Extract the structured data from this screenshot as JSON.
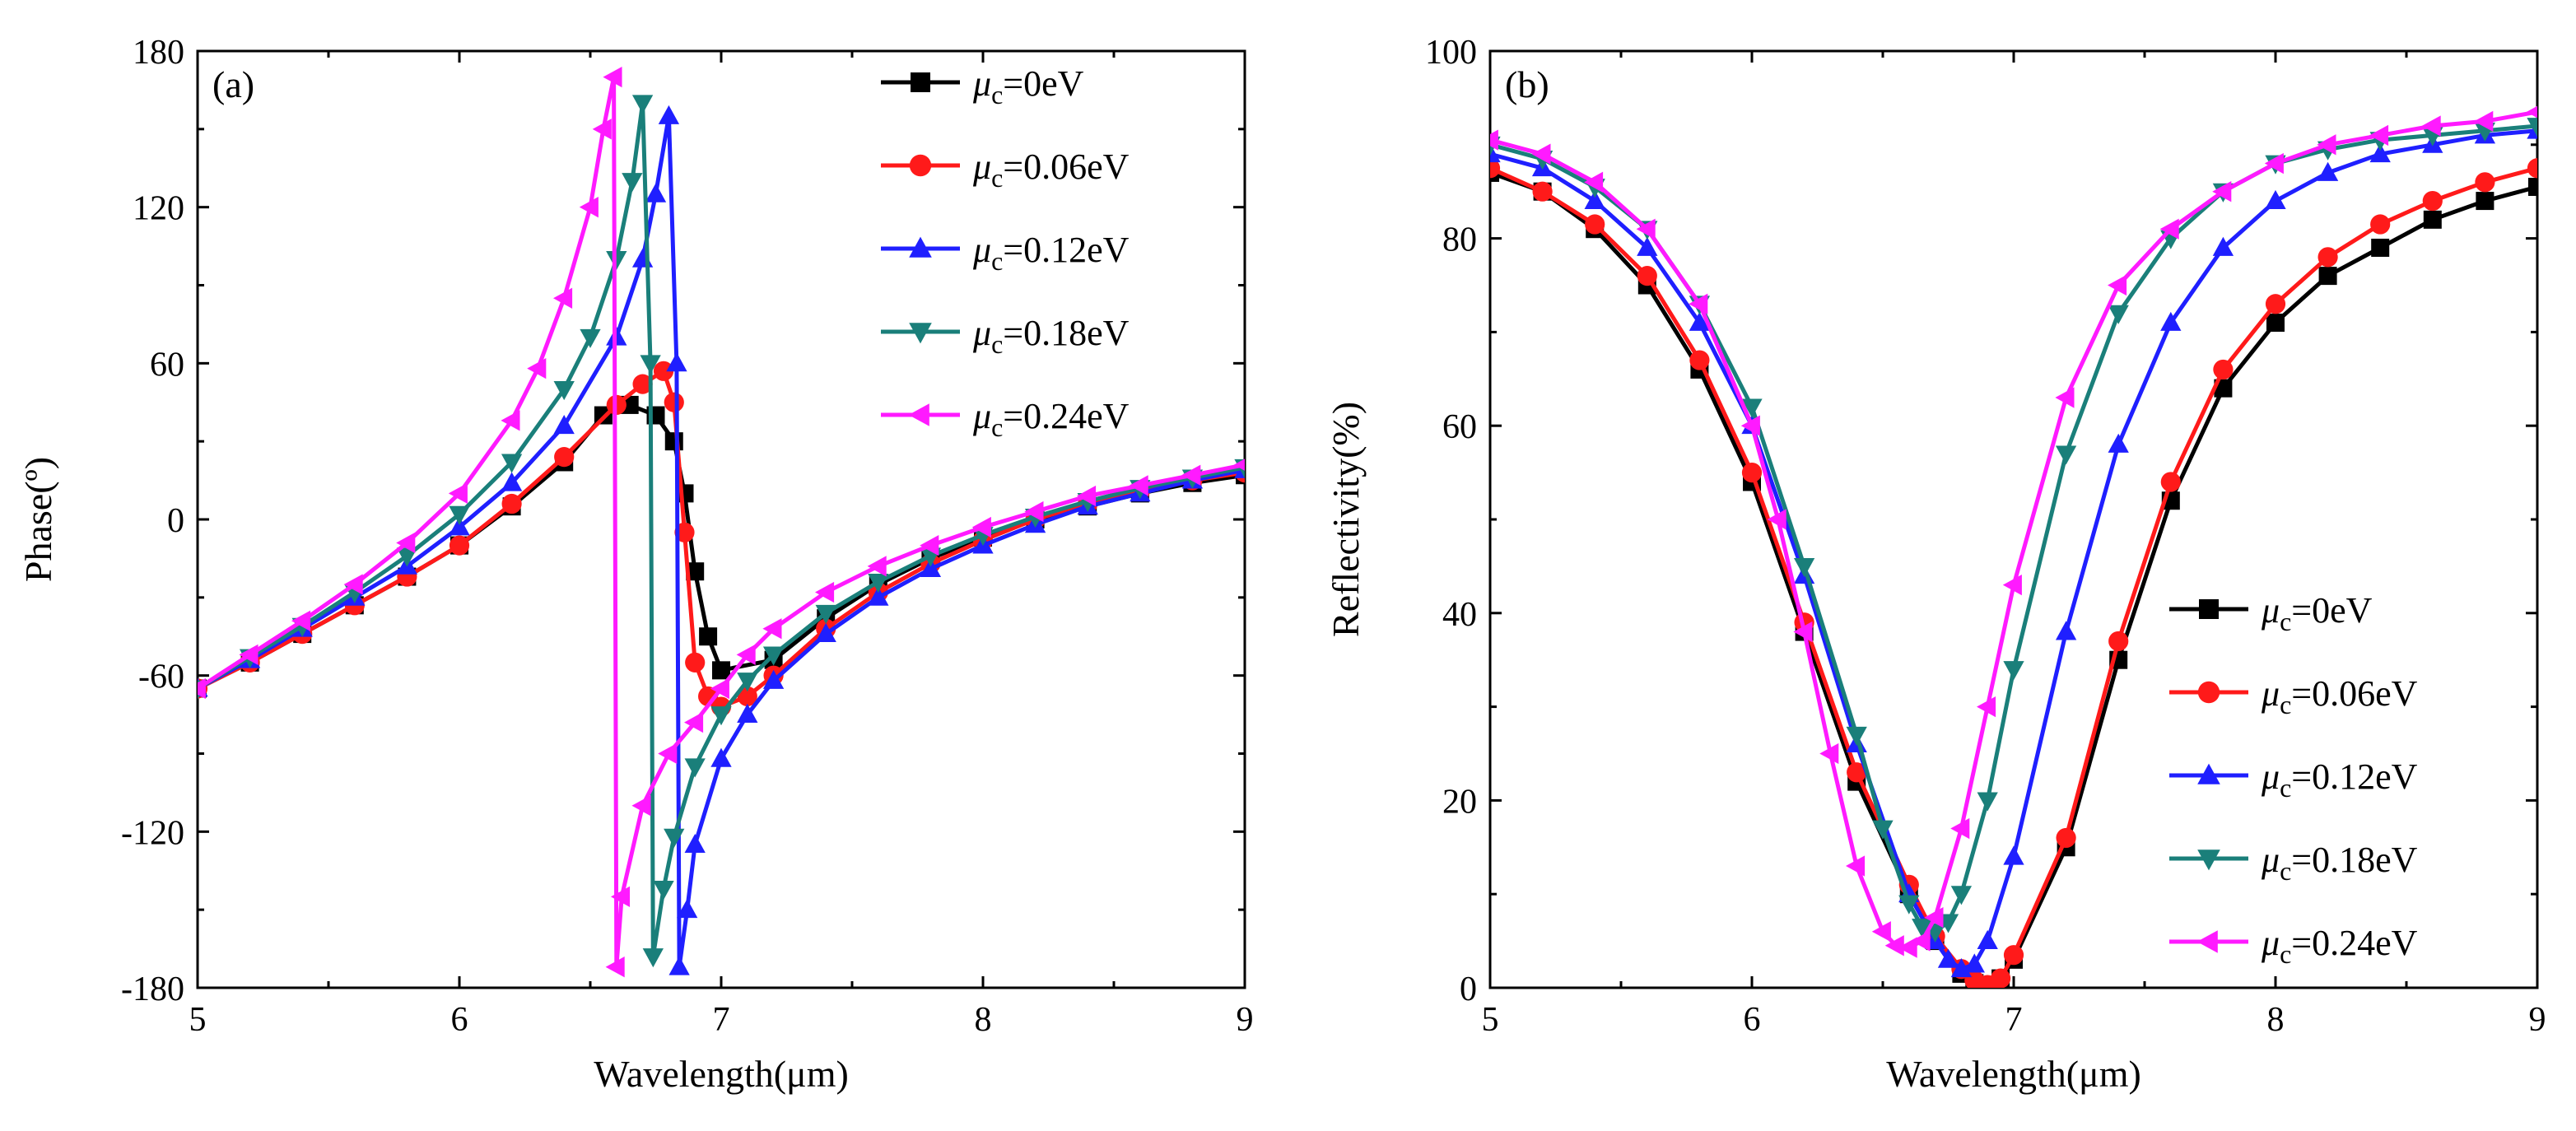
{
  "chart_data": [
    {
      "panel_label": "(a)",
      "type": "line",
      "xlabel": "Wavelength(μm)",
      "ylabel": "Phase(º)",
      "xlim": [
        5,
        9
      ],
      "ylim": [
        -180,
        180
      ],
      "xticks": [
        5,
        6,
        7,
        8,
        9
      ],
      "yticks": [
        -180,
        -120,
        -60,
        0,
        60,
        120,
        180
      ],
      "legend_position": "top-right",
      "series": [
        {
          "name": "μc=0eV",
          "legend_prefix": "μ",
          "legend_sub": "c",
          "legend_suffix": "=0eV",
          "color": "#000000",
          "marker": "square",
          "x": [
            5.0,
            5.2,
            5.4,
            5.6,
            5.8,
            6.0,
            6.2,
            6.4,
            6.55,
            6.65,
            6.75,
            6.82,
            6.86,
            6.9,
            6.95,
            7.0,
            7.2,
            7.4,
            7.6,
            7.8,
            8.0,
            8.2,
            8.4,
            8.6,
            8.8,
            9.0
          ],
          "y": [
            -65,
            -55,
            -44,
            -33,
            -22,
            -10,
            5,
            22,
            40,
            44,
            40,
            30,
            10,
            -20,
            -45,
            -58,
            -54,
            -38,
            -25,
            -15,
            -7,
            0,
            5,
            10,
            14,
            17
          ]
        },
        {
          "name": "μc=0.06eV",
          "legend_prefix": "μ",
          "legend_sub": "c",
          "legend_suffix": "=0.06eV",
          "color": "#ff1a1a",
          "marker": "circle",
          "x": [
            5.0,
            5.2,
            5.4,
            5.6,
            5.8,
            6.0,
            6.2,
            6.4,
            6.6,
            6.7,
            6.78,
            6.82,
            6.86,
            6.9,
            6.95,
            7.0,
            7.1,
            7.2,
            7.4,
            7.6,
            7.8,
            8.0,
            8.2,
            8.4,
            8.6,
            8.8,
            9.0
          ],
          "y": [
            -65,
            -55,
            -44,
            -33,
            -22,
            -10,
            6,
            24,
            44,
            52,
            57,
            45,
            -5,
            -55,
            -68,
            -72,
            -68,
            -60,
            -42,
            -28,
            -17,
            -8,
            0,
            6,
            11,
            15,
            18
          ]
        },
        {
          "name": "μc=0.12eV",
          "legend_prefix": "μ",
          "legend_sub": "c",
          "legend_suffix": "=0.12eV",
          "color": "#1f1fff",
          "marker": "triangle-up",
          "x": [
            5.0,
            5.2,
            5.4,
            5.6,
            5.8,
            6.0,
            6.2,
            6.4,
            6.6,
            6.7,
            6.75,
            6.8,
            6.83,
            6.84,
            6.87,
            6.9,
            7.0,
            7.1,
            7.2,
            7.4,
            7.6,
            7.8,
            8.0,
            8.2,
            8.4,
            8.6,
            8.8,
            9.0
          ],
          "y": [
            -65,
            -54,
            -42,
            -30,
            -18,
            -3,
            14,
            36,
            70,
            100,
            125,
            155,
            60,
            -172,
            -150,
            -125,
            -92,
            -75,
            -62,
            -44,
            -30,
            -19,
            -10,
            -2,
            5,
            10,
            15,
            19
          ]
        },
        {
          "name": "μc=0.18eV",
          "legend_prefix": "μ",
          "legend_sub": "c",
          "legend_suffix": "=0.18eV",
          "color": "#1a7f7a",
          "marker": "triangle-down",
          "x": [
            5.0,
            5.2,
            5.4,
            5.6,
            5.8,
            6.0,
            6.2,
            6.4,
            6.5,
            6.6,
            6.66,
            6.7,
            6.73,
            6.74,
            6.78,
            6.82,
            6.9,
            7.0,
            7.1,
            7.2,
            7.4,
            7.6,
            7.8,
            8.0,
            8.2,
            8.4,
            8.6,
            8.8,
            9.0
          ],
          "y": [
            -65,
            -53,
            -41,
            -28,
            -14,
            2,
            22,
            50,
            70,
            100,
            130,
            160,
            60,
            -168,
            -142,
            -122,
            -95,
            -75,
            -62,
            -52,
            -36,
            -24,
            -14,
            -6,
            1,
            7,
            12,
            16,
            20
          ]
        },
        {
          "name": "μc=0.24eV",
          "legend_prefix": "μ",
          "legend_sub": "c",
          "legend_suffix": "=0.24eV",
          "color": "#ff1aff",
          "marker": "triangle-left",
          "x": [
            5.0,
            5.2,
            5.4,
            5.6,
            5.8,
            6.0,
            6.2,
            6.3,
            6.4,
            6.5,
            6.55,
            6.59,
            6.6,
            6.62,
            6.7,
            6.8,
            6.9,
            7.0,
            7.1,
            7.2,
            7.4,
            7.6,
            7.8,
            8.0,
            8.2,
            8.4,
            8.6,
            8.8,
            9.0
          ],
          "y": [
            -65,
            -52,
            -39,
            -25,
            -9,
            10,
            38,
            58,
            85,
            120,
            150,
            170,
            -172,
            -145,
            -110,
            -90,
            -78,
            -65,
            -52,
            -42,
            -28,
            -18,
            -10,
            -3,
            3,
            9,
            13,
            17,
            21
          ]
        }
      ]
    },
    {
      "panel_label": "(b)",
      "type": "line",
      "xlabel": "Wavelength(μm)",
      "ylabel": "Reflectivity(%)",
      "xlim": [
        5,
        9
      ],
      "ylim": [
        0,
        100
      ],
      "xticks": [
        5,
        6,
        7,
        8,
        9
      ],
      "yticks": [
        0,
        20,
        40,
        60,
        80,
        100
      ],
      "legend_position": "bottom-right",
      "series": [
        {
          "name": "μc=0eV",
          "legend_prefix": "μ",
          "legend_sub": "c",
          "legend_suffix": "=0eV",
          "color": "#000000",
          "marker": "square",
          "x": [
            5.0,
            5.2,
            5.4,
            5.6,
            5.8,
            6.0,
            6.2,
            6.4,
            6.6,
            6.7,
            6.8,
            6.85,
            6.9,
            6.95,
            7.0,
            7.2,
            7.4,
            7.6,
            7.8,
            8.0,
            8.2,
            8.4,
            8.6,
            8.8,
            9.0
          ],
          "y": [
            87,
            85,
            81,
            75,
            66,
            54,
            38,
            22,
            10,
            5,
            1.5,
            0.5,
            0.3,
            1,
            3,
            15,
            35,
            52,
            64,
            71,
            76,
            79,
            82,
            84,
            85.5
          ]
        },
        {
          "name": "μc=0.06eV",
          "legend_prefix": "μ",
          "legend_sub": "c",
          "legend_suffix": "=0.06eV",
          "color": "#ff1a1a",
          "marker": "circle",
          "x": [
            5.0,
            5.2,
            5.4,
            5.6,
            5.8,
            6.0,
            6.2,
            6.4,
            6.6,
            6.7,
            6.8,
            6.85,
            6.9,
            6.95,
            7.0,
            7.2,
            7.4,
            7.6,
            7.8,
            8.0,
            8.2,
            8.4,
            8.6,
            8.8,
            9.0
          ],
          "y": [
            87.5,
            85,
            81.5,
            76,
            67,
            55,
            39,
            23,
            11,
            5.5,
            2,
            0.8,
            0.3,
            1,
            3.5,
            16,
            37,
            54,
            66,
            73,
            78,
            81.5,
            84,
            86,
            87.5
          ]
        },
        {
          "name": "μc=0.12eV",
          "legend_prefix": "μ",
          "legend_sub": "c",
          "legend_suffix": "=0.12eV",
          "color": "#1f1fff",
          "marker": "triangle-up",
          "x": [
            5.0,
            5.2,
            5.4,
            5.6,
            5.8,
            6.0,
            6.2,
            6.4,
            6.6,
            6.7,
            6.75,
            6.8,
            6.85,
            6.9,
            7.0,
            7.2,
            7.4,
            7.6,
            7.8,
            8.0,
            8.2,
            8.4,
            8.6,
            8.8,
            9.0
          ],
          "y": [
            89,
            87.5,
            84,
            79,
            71,
            60,
            44,
            26,
            10,
            5,
            3,
            2,
            2.5,
            5,
            14,
            38,
            58,
            71,
            79,
            84,
            87,
            89,
            90,
            91,
            91.5
          ]
        },
        {
          "name": "μc=0.18eV",
          "legend_prefix": "μ",
          "legend_sub": "c",
          "legend_suffix": "=0.18eV",
          "color": "#1a7f7a",
          "marker": "triangle-down",
          "x": [
            5.0,
            5.2,
            5.4,
            5.6,
            5.8,
            6.0,
            6.2,
            6.4,
            6.5,
            6.6,
            6.65,
            6.7,
            6.75,
            6.8,
            6.9,
            7.0,
            7.2,
            7.4,
            7.6,
            7.8,
            8.0,
            8.2,
            8.4,
            8.6,
            8.8,
            9.0
          ],
          "y": [
            90,
            88.5,
            85.5,
            81,
            73,
            62,
            45,
            27,
            17,
            9,
            6.5,
            6,
            7,
            10,
            20,
            34,
            57,
            72,
            80,
            85,
            88,
            89.5,
            90.5,
            91,
            91.5,
            92
          ]
        },
        {
          "name": "μc=0.24eV",
          "legend_prefix": "μ",
          "legend_sub": "c",
          "legend_suffix": "=0.24eV",
          "color": "#ff1aff",
          "marker": "triangle-left",
          "x": [
            5.0,
            5.2,
            5.4,
            5.6,
            5.8,
            6.0,
            6.1,
            6.2,
            6.3,
            6.4,
            6.5,
            6.55,
            6.6,
            6.65,
            6.7,
            6.8,
            6.9,
            7.0,
            7.2,
            7.4,
            7.6,
            7.8,
            8.0,
            8.2,
            8.4,
            8.6,
            8.8,
            9.0
          ],
          "y": [
            90.5,
            89,
            86,
            81,
            73,
            60,
            50,
            38,
            25,
            13,
            6,
            4.5,
            4.3,
            5,
            7.5,
            17,
            30,
            43,
            63,
            75,
            81,
            85,
            88,
            90,
            91,
            92,
            92.5,
            93.5
          ]
        }
      ]
    }
  ]
}
